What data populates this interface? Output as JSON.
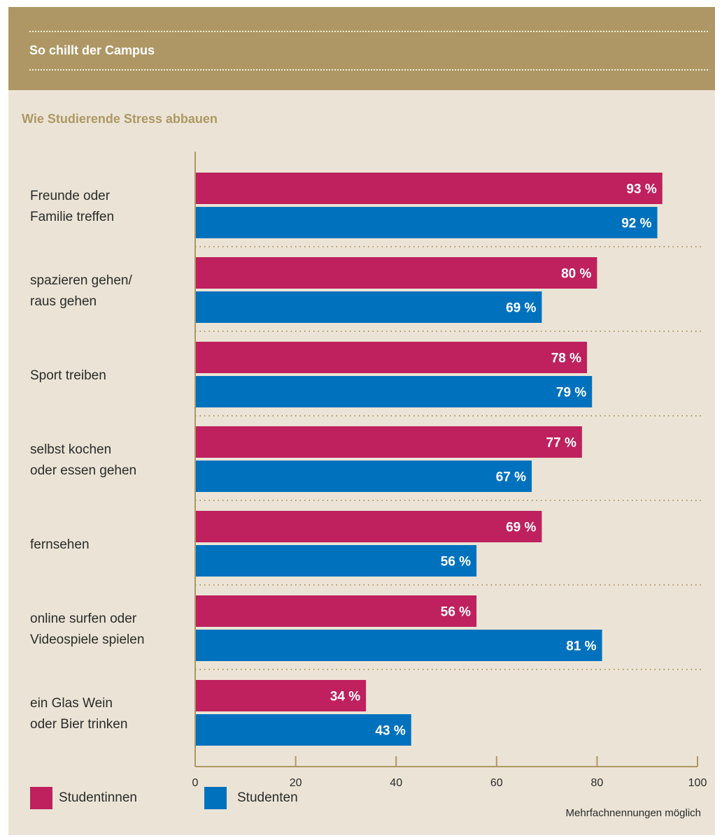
{
  "header": {
    "title": "So chillt der Campus"
  },
  "subtitle": "Wie Studierende Stress abbauen",
  "legend": [
    {
      "label": "Studentinnen",
      "color": "#be215d"
    },
    {
      "label": "Studenten",
      "color": "#0071bd"
    }
  ],
  "note": "Mehrfachnennungen möglich",
  "colors": {
    "header_bg": "#ae9764",
    "panel_bg": "#ebe4d6",
    "female": "#be215d",
    "male": "#0071bd",
    "axis": "#ae9764"
  },
  "chart_data": {
    "type": "bar",
    "orientation": "horizontal",
    "categories": [
      [
        "Freunde oder",
        "Familie treffen"
      ],
      [
        "spazieren gehen/",
        "raus gehen"
      ],
      [
        "Sport treiben"
      ],
      [
        "selbst kochen",
        "oder essen gehen"
      ],
      [
        "fernsehen"
      ],
      [
        "online surfen oder",
        "Videospiele spielen"
      ],
      [
        "ein Glas Wein",
        "oder Bier trinken"
      ]
    ],
    "series": [
      {
        "name": "Studentinnen",
        "values": [
          93,
          80,
          78,
          77,
          69,
          56,
          34
        ],
        "labels": [
          "93 %",
          "80 %",
          "78 %",
          "77 %",
          "69 %",
          "56 %",
          "34 %"
        ]
      },
      {
        "name": "Studenten",
        "values": [
          92,
          69,
          79,
          67,
          56,
          81,
          43
        ],
        "labels": [
          "92 %",
          "69 %",
          "79 %",
          "67 %",
          "56 %",
          "81 %",
          "43 %"
        ]
      }
    ],
    "xlim": [
      0,
      100
    ],
    "xticks": [
      0,
      20,
      40,
      60,
      80,
      100
    ],
    "title": "Wie Studierende Stress abbauen",
    "xlabel": "",
    "ylabel": "",
    "legend_position": "bottom-left",
    "grid": false
  }
}
